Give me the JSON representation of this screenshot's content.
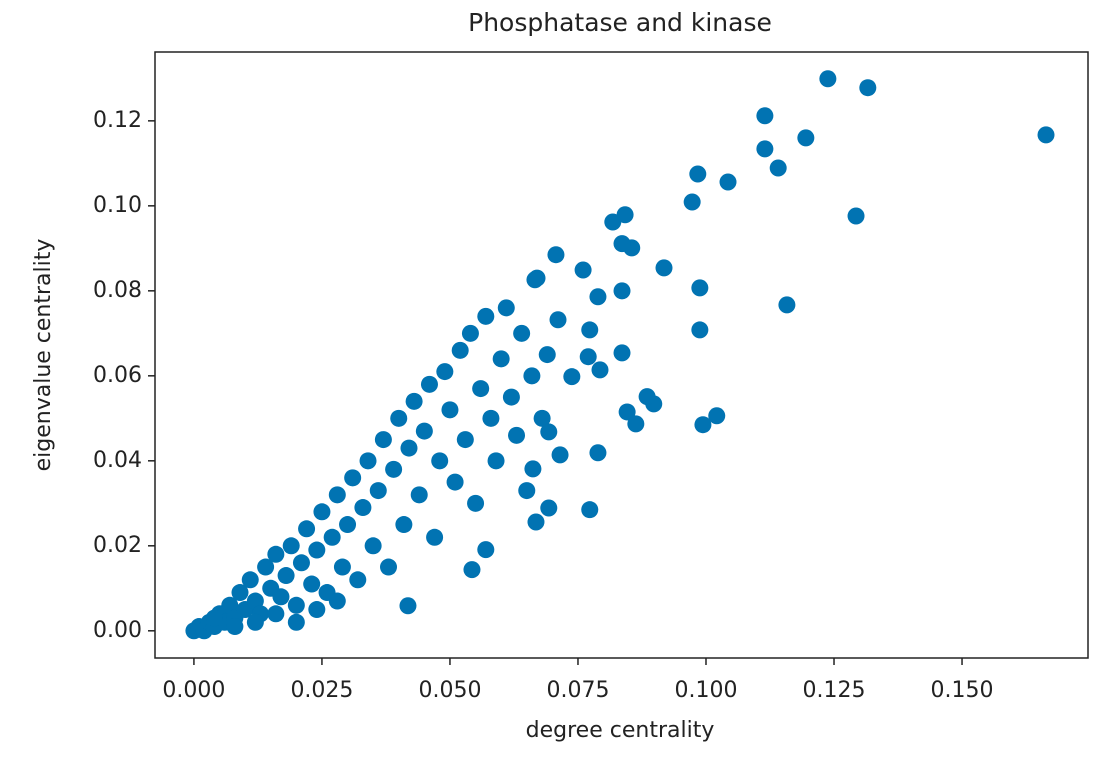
{
  "chart_data": {
    "type": "scatter",
    "title": "Phosphatase and kinase",
    "x_label": "degree centrality",
    "y_label": "eigenvalue centrality",
    "color": "#0173b2",
    "xlim": [
      -0.0076,
      0.1746
    ],
    "ylim": [
      -0.0064,
      0.1362
    ],
    "xticks": [
      {
        "value": 0,
        "label": "0.000"
      },
      0.025,
      {
        "value": 0.05,
        "label": "0.050"
      },
      0.075,
      {
        "value": 0.1,
        "label": "0.100"
      },
      0.125,
      {
        "value": 0.15,
        "label": "0.150"
      }
    ],
    "yticks": [
      {
        "value": 0,
        "label": "0.00"
      },
      0.02,
      0.04,
      0.06,
      0.08,
      {
        "value": 0.1,
        "label": "0.10"
      },
      0.12
    ],
    "x": [
      0.0,
      0.001,
      0.002,
      0.003,
      0.004,
      0.005,
      0.006,
      0.007,
      0.008,
      0.009,
      0.01,
      0.011,
      0.012,
      0.013,
      0.014,
      0.015,
      0.016,
      0.017,
      0.018,
      0.019,
      0.02,
      0.021,
      0.022,
      0.023,
      0.024,
      0.025,
      0.026,
      0.027,
      0.028,
      0.029,
      0.03,
      0.031,
      0.032,
      0.033,
      0.034,
      0.035,
      0.036,
      0.037,
      0.038,
      0.039,
      0.04,
      0.041,
      0.042,
      0.043,
      0.044,
      0.045,
      0.046,
      0.047,
      0.048,
      0.049,
      0.05,
      0.051,
      0.052,
      0.053,
      0.054,
      0.055,
      0.056,
      0.057,
      0.058,
      0.059,
      0.06,
      0.061,
      0.062,
      0.063,
      0.064,
      0.065,
      0.066,
      0.067,
      0.068,
      0.069,
      0.004,
      0.008,
      0.012,
      0.016,
      0.02,
      0.024,
      0.028,
      0.1664,
      0.1238,
      0.1316,
      0.1115,
      0.1195,
      0.1115,
      0.1141,
      0.1293,
      0.1158,
      0.0984,
      0.0973,
      0.1043,
      0.0988,
      0.0988,
      0.1021,
      0.0994,
      0.0918,
      0.0898,
      0.0885,
      0.0846,
      0.0863,
      0.0836,
      0.0836,
      0.0842,
      0.0818,
      0.0855,
      0.0836,
      0.0707,
      0.076,
      0.0789,
      0.0773,
      0.0793,
      0.077,
      0.0738,
      0.0773,
      0.0789,
      0.0715,
      0.0693,
      0.0668,
      0.0662,
      0.0693,
      0.0711,
      0.0666,
      0.0543,
      0.057,
      0.0418
    ],
    "values": [
      0.0,
      0.001,
      0.0,
      0.002,
      0.001,
      0.004,
      0.002,
      0.006,
      0.003,
      0.009,
      0.005,
      0.012,
      0.007,
      0.004,
      0.015,
      0.01,
      0.018,
      0.008,
      0.013,
      0.02,
      0.006,
      0.016,
      0.024,
      0.011,
      0.019,
      0.028,
      0.009,
      0.022,
      0.032,
      0.015,
      0.025,
      0.036,
      0.012,
      0.029,
      0.04,
      0.02,
      0.033,
      0.045,
      0.015,
      0.038,
      0.05,
      0.025,
      0.043,
      0.054,
      0.032,
      0.047,
      0.058,
      0.022,
      0.04,
      0.061,
      0.052,
      0.035,
      0.066,
      0.045,
      0.07,
      0.03,
      0.057,
      0.074,
      0.05,
      0.04,
      0.064,
      0.076,
      0.055,
      0.046,
      0.07,
      0.033,
      0.06,
      0.083,
      0.05,
      0.065,
      0.003,
      0.001,
      0.002,
      0.004,
      0.002,
      0.005,
      0.007,
      0.1167,
      0.1299,
      0.1278,
      0.1212,
      0.116,
      0.1134,
      0.1089,
      0.0976,
      0.0767,
      0.1075,
      0.1009,
      0.1056,
      0.0807,
      0.0708,
      0.0506,
      0.0485,
      0.0854,
      0.0534,
      0.0551,
      0.0515,
      0.0487,
      0.0654,
      0.08,
      0.0979,
      0.0962,
      0.0901,
      0.0911,
      0.0885,
      0.0849,
      0.0786,
      0.0708,
      0.0614,
      0.0645,
      0.0598,
      0.0285,
      0.0419,
      0.0414,
      0.0289,
      0.0256,
      0.0381,
      0.0468,
      0.0732,
      0.0826,
      0.0144,
      0.0191,
      0.0059
    ]
  }
}
